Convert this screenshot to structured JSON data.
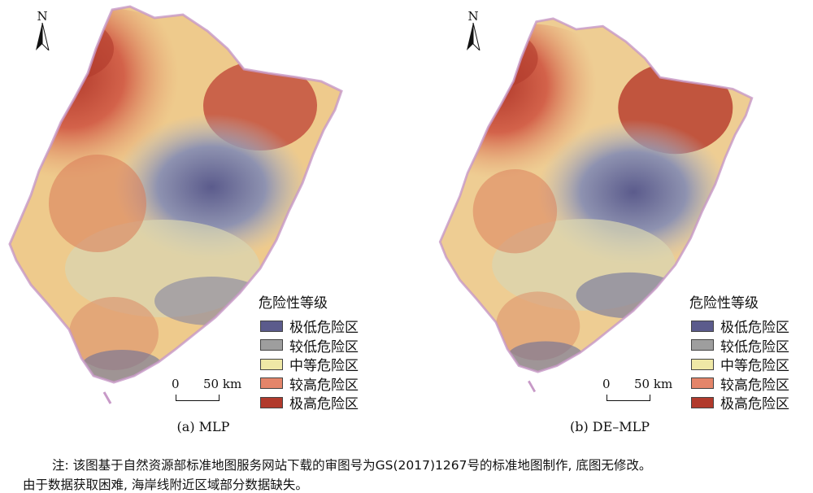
{
  "maps": [
    {
      "id": "a",
      "caption": "(a) MLP",
      "north_label": "N",
      "legend": {
        "title": "危险性等级",
        "items": [
          {
            "label": "极低危险区",
            "color": "#5b5b8c"
          },
          {
            "label": "较低危险区",
            "color": "#9e9e9e"
          },
          {
            "label": "中等危险区",
            "color": "#efe8a6"
          },
          {
            "label": "较高危险区",
            "color": "#e4856a"
          },
          {
            "label": "极高危险区",
            "color": "#b13a2c"
          }
        ]
      },
      "scalebar": {
        "start": "0",
        "end": "50 km"
      }
    },
    {
      "id": "b",
      "caption": "(b) DE–MLP",
      "north_label": "N",
      "legend": {
        "title": "危险性等级",
        "items": [
          {
            "label": "极低危险区",
            "color": "#5b5b8c"
          },
          {
            "label": "较低危险区",
            "color": "#9e9e9e"
          },
          {
            "label": "中等危险区",
            "color": "#efe8a6"
          },
          {
            "label": "较高危险区",
            "color": "#e4856a"
          },
          {
            "label": "极高危险区",
            "color": "#b13a2c"
          }
        ]
      },
      "scalebar": {
        "start": "0",
        "end": "50 km"
      }
    }
  ],
  "note": {
    "line1": "注: 该图基于自然资源部标准地图服务网站下载的审图号为GS(2017)1267号的标准地图制作, 底图无修改。",
    "line2": "由于数据获取困难, 海岸线附近区域部分数据缺失。"
  }
}
